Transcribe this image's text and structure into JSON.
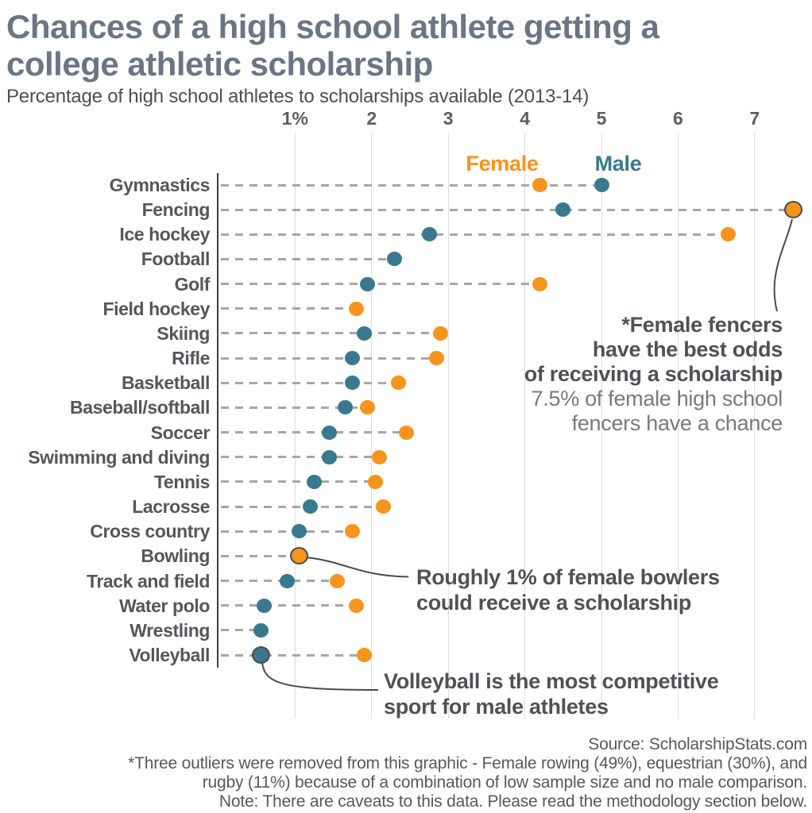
{
  "header": {
    "title_line1": "Chances of a high school athlete getting a",
    "title_line2": "college athletic scholarship",
    "subtitle": "Percentage of high school athletes to scholarships available (2013-14)"
  },
  "legend": {
    "female": "Female",
    "male": "Male"
  },
  "chart_data": {
    "type": "scatter",
    "title": "Chances of a high school athlete getting a college athletic scholarship",
    "subtitle": "Percentage of high school athletes to scholarships available (2013-14)",
    "x_tick_labels": [
      "1%",
      "2",
      "3",
      "4",
      "5",
      "6",
      "7"
    ],
    "x_tick_values": [
      1,
      2,
      3,
      4,
      5,
      6,
      7
    ],
    "x_range": [
      0,
      7.75
    ],
    "grid": true,
    "series_names": [
      "Female",
      "Male"
    ],
    "rows": [
      {
        "sport": "Gymnastics",
        "female": 4.2,
        "male": 5.0,
        "highlight": null
      },
      {
        "sport": "Fencing",
        "female": 7.5,
        "male": 4.5,
        "highlight": "female"
      },
      {
        "sport": "Ice hockey",
        "female": 6.65,
        "male": 2.75,
        "highlight": null
      },
      {
        "sport": "Football",
        "female": null,
        "male": 2.3,
        "highlight": null
      },
      {
        "sport": "Golf",
        "female": 4.2,
        "male": 1.95,
        "highlight": null
      },
      {
        "sport": "Field hockey",
        "female": 1.8,
        "male": null,
        "highlight": null
      },
      {
        "sport": "Skiing",
        "female": 2.9,
        "male": 1.9,
        "highlight": null
      },
      {
        "sport": "Rifle",
        "female": 2.85,
        "male": 1.75,
        "highlight": null
      },
      {
        "sport": "Basketball",
        "female": 2.35,
        "male": 1.75,
        "highlight": null
      },
      {
        "sport": "Baseball/softball",
        "female": 1.95,
        "male": 1.65,
        "highlight": null
      },
      {
        "sport": "Soccer",
        "female": 2.45,
        "male": 1.45,
        "highlight": null
      },
      {
        "sport": "Swimming and diving",
        "female": 2.1,
        "male": 1.45,
        "highlight": null
      },
      {
        "sport": "Tennis",
        "female": 2.05,
        "male": 1.25,
        "highlight": null
      },
      {
        "sport": "Lacrosse",
        "female": 2.15,
        "male": 1.2,
        "highlight": null
      },
      {
        "sport": "Cross country",
        "female": 1.75,
        "male": 1.05,
        "highlight": null
      },
      {
        "sport": "Bowling",
        "female": 1.05,
        "male": null,
        "highlight": "female"
      },
      {
        "sport": "Track and field",
        "female": 1.55,
        "male": 0.9,
        "highlight": null
      },
      {
        "sport": "Water polo",
        "female": 1.8,
        "male": 0.6,
        "highlight": null
      },
      {
        "sport": "Wrestling",
        "female": null,
        "male": 0.55,
        "highlight": null
      },
      {
        "sport": "Volleyball",
        "female": 1.9,
        "male": 0.55,
        "highlight": "male"
      }
    ]
  },
  "annotations": {
    "fencing": {
      "bold_lines": [
        "*Female fencers",
        "have the best odds",
        "of receiving a scholarship"
      ],
      "light_lines": [
        "7.5% of female high school",
        "fencers have a chance"
      ]
    },
    "bowling": {
      "bold_lines": [
        "Roughly 1% of female bowlers",
        "could receive a scholarship"
      ]
    },
    "volleyball": {
      "bold_lines": [
        "Volleyball is the most competitive",
        "sport for male athletes"
      ]
    }
  },
  "footer": {
    "lines": [
      "Source: ScholarshipStats.com",
      "*Three outliers were removed from this graphic - Female rowing (49%), equestrian (30%), and",
      "rugby (11%) because of a combination of low sample size and no male comparison.",
      "Note: There are caveats to this data. Please read the methodology section below."
    ]
  },
  "colors": {
    "female": "#f7941d",
    "male": "#38798e",
    "title": "#6a7585",
    "highlight_ring": "#4a4a4a"
  }
}
